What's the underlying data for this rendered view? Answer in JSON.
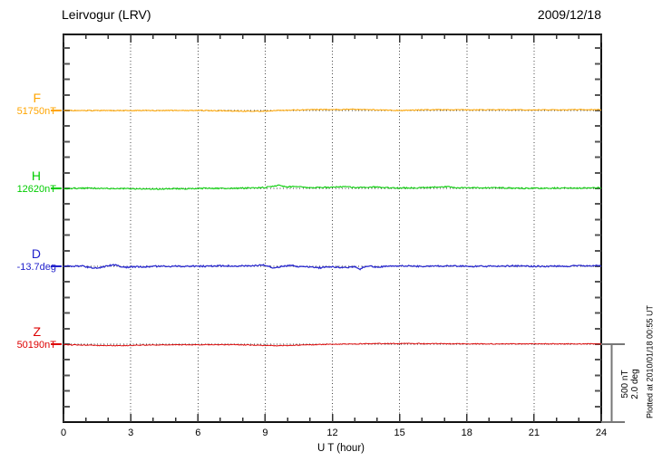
{
  "header": {
    "title": "Leirvogur (LRV)",
    "date": "2009/12/18"
  },
  "chart_data": {
    "type": "line",
    "title": "Leirvogur (LRV)",
    "date": "2009/12/18",
    "xlabel": "U T (hour)",
    "x_range": [
      0,
      24
    ],
    "x_major_ticks": [
      0,
      3,
      6,
      9,
      12,
      15,
      18,
      21,
      24
    ],
    "x_minor_step_hours": 1,
    "grid": "vertical dotted lines every 3 hours; horizontal dotted reference line at each trace baseline",
    "y_minor_tick_nT": 100,
    "scale_bar": {
      "nT": 500,
      "deg": 2.0
    },
    "series": [
      {
        "name": "F",
        "unit": "nT",
        "baseline_value": 51750,
        "value_label": "51750nT",
        "color": "#FFA500",
        "points": [
          [
            0,
            0
          ],
          [
            2,
            0
          ],
          [
            4,
            0
          ],
          [
            6,
            0
          ],
          [
            7,
            -1
          ],
          [
            8,
            -4
          ],
          [
            8.7,
            -5
          ],
          [
            9.3,
            -2
          ],
          [
            10,
            2
          ],
          [
            11,
            6
          ],
          [
            12,
            6
          ],
          [
            13,
            8
          ],
          [
            13.7,
            6
          ],
          [
            14.5,
            2
          ],
          [
            15.2,
            0
          ],
          [
            16,
            4
          ],
          [
            17,
            5
          ],
          [
            18,
            4
          ],
          [
            19,
            4
          ],
          [
            20,
            5
          ],
          [
            21,
            4
          ],
          [
            22,
            4
          ],
          [
            23,
            5
          ],
          [
            24,
            6
          ]
        ]
      },
      {
        "name": "H",
        "unit": "nT",
        "baseline_value": 12620,
        "value_label": "12620nT",
        "color": "#00CC00",
        "points": [
          [
            0,
            0
          ],
          [
            1,
            2
          ],
          [
            2,
            0
          ],
          [
            3,
            -2
          ],
          [
            4,
            -4
          ],
          [
            5,
            -2
          ],
          [
            6,
            0
          ],
          [
            7,
            0
          ],
          [
            8,
            2
          ],
          [
            9,
            6
          ],
          [
            9.6,
            18
          ],
          [
            10,
            10
          ],
          [
            10.4,
            12
          ],
          [
            11,
            4
          ],
          [
            11.5,
            6
          ],
          [
            12,
            6
          ],
          [
            12.5,
            11
          ],
          [
            13,
            5
          ],
          [
            13.5,
            8
          ],
          [
            14,
            9
          ],
          [
            14.5,
            4
          ],
          [
            15,
            2
          ],
          [
            16,
            4
          ],
          [
            16.8,
            10
          ],
          [
            17.2,
            11
          ],
          [
            17.6,
            5
          ],
          [
            18,
            4
          ],
          [
            19,
            4
          ],
          [
            20,
            2
          ],
          [
            21,
            1
          ],
          [
            22,
            2
          ],
          [
            23,
            2
          ],
          [
            24,
            4
          ]
        ]
      },
      {
        "name": "D",
        "unit": "deg",
        "baseline_value": -13.7,
        "value_label": "-13.7deg",
        "color": "#2222CC",
        "points": [
          [
            0,
            0
          ],
          [
            0.8,
            0.01
          ],
          [
            1.2,
            -0.03
          ],
          [
            1.6,
            -0.04
          ],
          [
            2,
            0.02
          ],
          [
            2.3,
            0.03
          ],
          [
            2.7,
            -0.03
          ],
          [
            3,
            -0.01
          ],
          [
            3.5,
            -0.02
          ],
          [
            4,
            0
          ],
          [
            5,
            0
          ],
          [
            6,
            0
          ],
          [
            7,
            0.01
          ],
          [
            8,
            0.01
          ],
          [
            8.6,
            0.02
          ],
          [
            9,
            0.03
          ],
          [
            9.4,
            -0.05
          ],
          [
            9.8,
            0.01
          ],
          [
            10.2,
            0.02
          ],
          [
            10.6,
            -0.02
          ],
          [
            11,
            -0.01
          ],
          [
            11.4,
            -0.04
          ],
          [
            11.8,
            -0.01
          ],
          [
            12.2,
            -0.02
          ],
          [
            12.6,
            -0.03
          ],
          [
            13,
            -0.01
          ],
          [
            13.25,
            -0.07
          ],
          [
            13.5,
            0.01
          ],
          [
            14,
            -0.02
          ],
          [
            14.5,
            0
          ],
          [
            15,
            0.01
          ],
          [
            16,
            0
          ],
          [
            17,
            0.01
          ],
          [
            18,
            0
          ],
          [
            19,
            0
          ],
          [
            20,
            0.01
          ],
          [
            21,
            0
          ],
          [
            22,
            0
          ],
          [
            23,
            0.01
          ],
          [
            24,
            0.02
          ]
        ]
      },
      {
        "name": "Z",
        "unit": "nT",
        "baseline_value": 50190,
        "value_label": "50190nT",
        "color": "#DD0000",
        "points": [
          [
            0,
            -3
          ],
          [
            0.5,
            -5
          ],
          [
            1,
            -6
          ],
          [
            1.5,
            -8
          ],
          [
            2,
            -9
          ],
          [
            2.5,
            -9
          ],
          [
            3,
            -8
          ],
          [
            3.5,
            -6
          ],
          [
            4,
            -5
          ],
          [
            5,
            -4
          ],
          [
            6,
            -4
          ],
          [
            7,
            -3
          ],
          [
            8,
            -4
          ],
          [
            8.5,
            -6
          ],
          [
            9,
            -8
          ],
          [
            9.5,
            -9
          ],
          [
            10,
            -8
          ],
          [
            10.5,
            -6
          ],
          [
            11,
            -4
          ],
          [
            11.5,
            -2
          ],
          [
            12,
            0
          ],
          [
            12.5,
            1
          ],
          [
            13,
            2
          ],
          [
            13.5,
            3
          ],
          [
            14,
            4
          ],
          [
            15,
            4
          ],
          [
            16,
            4
          ],
          [
            17,
            3
          ],
          [
            18,
            2
          ],
          [
            19,
            2
          ],
          [
            20,
            2
          ],
          [
            21,
            2
          ],
          [
            22,
            2
          ],
          [
            23,
            2
          ],
          [
            24,
            2
          ]
        ]
      }
    ]
  },
  "annotations": {
    "scale_bar_line1": "500 nT",
    "scale_bar_line2": "2.0 deg",
    "plotted_at": "Plotted at 2010/01/18 00:55 UT"
  },
  "colors": {
    "frame": "#111111",
    "ticks": "#555555",
    "grid": "#444444",
    "scalebar": "#777777",
    "background": "#ffffff"
  }
}
